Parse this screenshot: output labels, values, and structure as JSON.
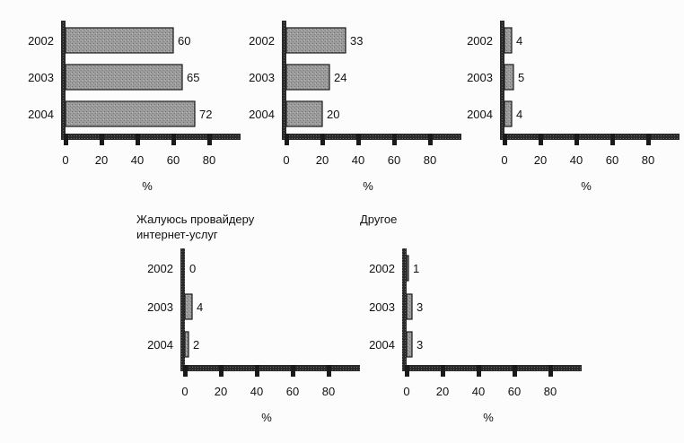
{
  "chart_data": [
    {
      "type": "bar",
      "orientation": "horizontal",
      "title": "",
      "categories": [
        "2002",
        "2003",
        "2004"
      ],
      "values": [
        60,
        65,
        72
      ],
      "xlabel": "%",
      "xticks": [
        "0",
        "20",
        "40",
        "60",
        "80"
      ],
      "xlim": [
        0,
        95
      ],
      "grid": false
    },
    {
      "type": "bar",
      "orientation": "horizontal",
      "title": "",
      "categories": [
        "2002",
        "2003",
        "2004"
      ],
      "values": [
        33,
        24,
        20
      ],
      "xlabel": "%",
      "xticks": [
        "0",
        "20",
        "40",
        "60",
        "80"
      ],
      "xlim": [
        0,
        95
      ],
      "grid": false
    },
    {
      "type": "bar",
      "orientation": "horizontal",
      "title": "",
      "categories": [
        "2002",
        "2003",
        "2004"
      ],
      "values": [
        4,
        5,
        4
      ],
      "xlabel": "%",
      "xticks": [
        "0",
        "20",
        "40",
        "60",
        "80"
      ],
      "xlim": [
        0,
        95
      ],
      "grid": false
    },
    {
      "type": "bar",
      "orientation": "horizontal",
      "title": "Жалуюсь провайдеру\nинтернет-услуг",
      "categories": [
        "2002",
        "2003",
        "2004"
      ],
      "values": [
        0,
        4,
        2
      ],
      "xlabel": "%",
      "xticks": [
        "0",
        "20",
        "40",
        "60",
        "80"
      ],
      "xlim": [
        0,
        95
      ],
      "grid": false
    },
    {
      "type": "bar",
      "orientation": "horizontal",
      "title": "Другое",
      "categories": [
        "2002",
        "2003",
        "2004"
      ],
      "values": [
        1,
        3,
        3
      ],
      "xlabel": "%",
      "xticks": [
        "0",
        "20",
        "40",
        "60",
        "80"
      ],
      "xlim": [
        0,
        95
      ],
      "grid": false
    }
  ],
  "colors": {
    "bar_fill": "#9a9a9a",
    "bar_stroke": "#1a1a1a",
    "axis": "#1a1a1a",
    "text": "#111111",
    "background": "#fcfcfc"
  }
}
